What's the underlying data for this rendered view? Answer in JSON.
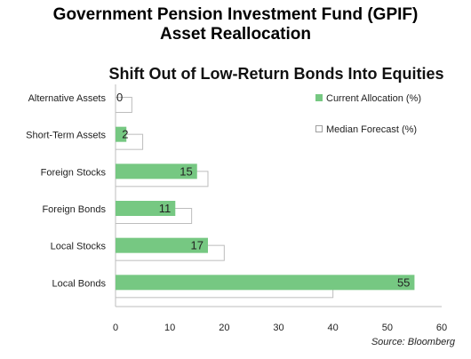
{
  "title_line1": "Government Pension Investment Fund (GPIF)",
  "title_line2": "Asset Reallocation",
  "source": "Source: Bloomberg",
  "chart_data": {
    "type": "bar",
    "orientation": "horizontal",
    "title": "Shift Out of Low-Return Bonds Into Equities",
    "categories": [
      "Alternative Assets",
      "Short-Term Assets",
      "Foreign Stocks",
      "Foreign Bonds",
      "Local Stocks",
      "Local Bonds"
    ],
    "series": [
      {
        "name": "Current Allocation (%)",
        "values": [
          0,
          2,
          15,
          11,
          17,
          55
        ],
        "color": "#76c882",
        "data_labels": true
      },
      {
        "name": "Median Forecast (%)",
        "values": [
          3,
          5,
          17,
          14,
          20,
          40
        ],
        "color": "#ffffff",
        "stroke": "#bdbdbd",
        "data_labels": false
      }
    ],
    "xlim": [
      0,
      60
    ],
    "xticks": [
      "0",
      "10",
      "20",
      "30",
      "40",
      "50",
      "60"
    ],
    "legend_position": "top-right",
    "grid": false
  }
}
